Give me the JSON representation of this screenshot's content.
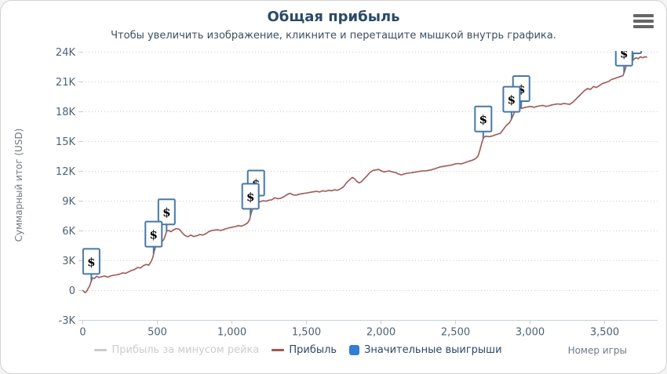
{
  "chart_data": {
    "type": "line",
    "title": "Общая прибыль",
    "subtitle": "Чтобы увеличить изображение, кликните и перетащите мышкой внутрь графика.",
    "xlabel": "Номер игры",
    "ylabel": "Суммарный итог (USD)",
    "xlim": [
      0,
      3860
    ],
    "ylim": [
      -3000,
      24000
    ],
    "grid": "horizontal-dotted",
    "legend_position": "bottom-center",
    "x_ticks": [
      {
        "value": 0,
        "label": "0"
      },
      {
        "value": 500,
        "label": "500"
      },
      {
        "value": 1000,
        "label": "1,000"
      },
      {
        "value": 1500,
        "label": "1,500"
      },
      {
        "value": 2000,
        "label": "2,000"
      },
      {
        "value": 2500,
        "label": "2,500"
      },
      {
        "value": 3000,
        "label": "3,000"
      },
      {
        "value": 3500,
        "label": "3,500"
      }
    ],
    "y_ticks": [
      {
        "value": -3000,
        "label": "-3K"
      },
      {
        "value": 0,
        "label": "0"
      },
      {
        "value": 3000,
        "label": "3K"
      },
      {
        "value": 6000,
        "label": "6K"
      },
      {
        "value": 9000,
        "label": "9K"
      },
      {
        "value": 12000,
        "label": "12K"
      },
      {
        "value": 15000,
        "label": "15K"
      },
      {
        "value": 18000,
        "label": "18K"
      },
      {
        "value": 21000,
        "label": "21K"
      },
      {
        "value": 24000,
        "label": "24K"
      }
    ],
    "series": [
      {
        "name": "Прибыль за минусом рейка",
        "type": "line",
        "visible": false,
        "color": "#cccccc",
        "points": []
      },
      {
        "name": "Прибыль",
        "type": "line",
        "visible": true,
        "color": "#b0524e",
        "points": [
          [
            0,
            0
          ],
          [
            8,
            -100
          ],
          [
            18,
            -250
          ],
          [
            28,
            -150
          ],
          [
            38,
            150
          ],
          [
            48,
            400
          ],
          [
            55,
            700
          ],
          [
            62,
            1000
          ],
          [
            68,
            1250
          ],
          [
            80,
            1150
          ],
          [
            95,
            1400
          ],
          [
            110,
            1280
          ],
          [
            130,
            1350
          ],
          [
            150,
            1420
          ],
          [
            170,
            1300
          ],
          [
            190,
            1430
          ],
          [
            210,
            1500
          ],
          [
            230,
            1540
          ],
          [
            250,
            1600
          ],
          [
            270,
            1740
          ],
          [
            290,
            1690
          ],
          [
            310,
            1840
          ],
          [
            330,
            1980
          ],
          [
            350,
            2080
          ],
          [
            370,
            2280
          ],
          [
            390,
            2230
          ],
          [
            410,
            2480
          ],
          [
            430,
            2580
          ],
          [
            445,
            2500
          ],
          [
            460,
            2850
          ],
          [
            472,
            3250
          ],
          [
            480,
            3800
          ],
          [
            490,
            4300
          ],
          [
            500,
            4480
          ],
          [
            512,
            4400
          ],
          [
            524,
            4680
          ],
          [
            536,
            4900
          ],
          [
            548,
            5150
          ],
          [
            558,
            5600
          ],
          [
            566,
            5950
          ],
          [
            580,
            6000
          ],
          [
            595,
            5880
          ],
          [
            610,
            6050
          ],
          [
            630,
            6200
          ],
          [
            650,
            6130
          ],
          [
            668,
            5800
          ],
          [
            688,
            5500
          ],
          [
            708,
            5380
          ],
          [
            728,
            5540
          ],
          [
            748,
            5400
          ],
          [
            768,
            5480
          ],
          [
            788,
            5600
          ],
          [
            808,
            5540
          ],
          [
            828,
            5680
          ],
          [
            848,
            5880
          ],
          [
            868,
            6000
          ],
          [
            888,
            6050
          ],
          [
            908,
            6080
          ],
          [
            928,
            6000
          ],
          [
            948,
            6100
          ],
          [
            968,
            6200
          ],
          [
            988,
            6280
          ],
          [
            1008,
            6340
          ],
          [
            1028,
            6400
          ],
          [
            1048,
            6500
          ],
          [
            1068,
            6440
          ],
          [
            1088,
            6580
          ],
          [
            1108,
            6750
          ],
          [
            1122,
            7100
          ],
          [
            1130,
            7600
          ],
          [
            1140,
            8100
          ],
          [
            1152,
            8500
          ],
          [
            1165,
            8800
          ],
          [
            1178,
            9000
          ],
          [
            1192,
            8900
          ],
          [
            1212,
            9000
          ],
          [
            1232,
            8950
          ],
          [
            1252,
            9050
          ],
          [
            1272,
            9100
          ],
          [
            1292,
            9300
          ],
          [
            1312,
            9200
          ],
          [
            1332,
            9250
          ],
          [
            1352,
            9400
          ],
          [
            1372,
            9600
          ],
          [
            1392,
            9750
          ],
          [
            1412,
            9600
          ],
          [
            1432,
            9550
          ],
          [
            1452,
            9650
          ],
          [
            1472,
            9700
          ],
          [
            1492,
            9750
          ],
          [
            1512,
            9800
          ],
          [
            1532,
            9850
          ],
          [
            1552,
            9900
          ],
          [
            1572,
            9950
          ],
          [
            1592,
            9880
          ],
          [
            1612,
            10000
          ],
          [
            1632,
            9950
          ],
          [
            1652,
            10050
          ],
          [
            1672,
            10000
          ],
          [
            1692,
            10100
          ],
          [
            1712,
            10050
          ],
          [
            1732,
            10200
          ],
          [
            1752,
            10400
          ],
          [
            1772,
            10800
          ],
          [
            1792,
            11100
          ],
          [
            1812,
            11350
          ],
          [
            1827,
            11200
          ],
          [
            1842,
            10950
          ],
          [
            1857,
            10800
          ],
          [
            1872,
            10900
          ],
          [
            1890,
            11200
          ],
          [
            1910,
            11500
          ],
          [
            1930,
            11850
          ],
          [
            1950,
            12050
          ],
          [
            1970,
            12100
          ],
          [
            1988,
            12150
          ],
          [
            2006,
            12000
          ],
          [
            2024,
            11900
          ],
          [
            2042,
            11950
          ],
          [
            2060,
            12000
          ],
          [
            2080,
            11900
          ],
          [
            2100,
            11850
          ],
          [
            2120,
            11700
          ],
          [
            2140,
            11600
          ],
          [
            2160,
            11700
          ],
          [
            2180,
            11760
          ],
          [
            2200,
            11800
          ],
          [
            2220,
            11850
          ],
          [
            2240,
            11900
          ],
          [
            2260,
            11950
          ],
          [
            2280,
            12000
          ],
          [
            2300,
            12000
          ],
          [
            2320,
            12050
          ],
          [
            2340,
            12100
          ],
          [
            2360,
            12200
          ],
          [
            2380,
            12300
          ],
          [
            2400,
            12400
          ],
          [
            2420,
            12450
          ],
          [
            2440,
            12500
          ],
          [
            2460,
            12550
          ],
          [
            2480,
            12600
          ],
          [
            2500,
            12700
          ],
          [
            2520,
            12750
          ],
          [
            2540,
            12700
          ],
          [
            2560,
            12800
          ],
          [
            2580,
            12900
          ],
          [
            2600,
            13000
          ],
          [
            2620,
            13100
          ],
          [
            2640,
            13250
          ],
          [
            2655,
            13500
          ],
          [
            2668,
            14100
          ],
          [
            2680,
            14800
          ],
          [
            2692,
            15350
          ],
          [
            2706,
            15500
          ],
          [
            2726,
            15450
          ],
          [
            2746,
            15500
          ],
          [
            2766,
            15600
          ],
          [
            2786,
            15700
          ],
          [
            2806,
            15800
          ],
          [
            2826,
            16200
          ],
          [
            2846,
            16600
          ],
          [
            2866,
            16850
          ],
          [
            2882,
            17300
          ],
          [
            2898,
            17850
          ],
          [
            2914,
            18150
          ],
          [
            2930,
            18350
          ],
          [
            2950,
            18300
          ],
          [
            2970,
            18400
          ],
          [
            2990,
            18450
          ],
          [
            3010,
            18500
          ],
          [
            3030,
            18400
          ],
          [
            3050,
            18500
          ],
          [
            3070,
            18550
          ],
          [
            3090,
            18600
          ],
          [
            3110,
            18500
          ],
          [
            3130,
            18550
          ],
          [
            3150,
            18650
          ],
          [
            3170,
            18700
          ],
          [
            3190,
            18750
          ],
          [
            3210,
            18700
          ],
          [
            3230,
            18800
          ],
          [
            3250,
            18750
          ],
          [
            3270,
            18700
          ],
          [
            3290,
            18900
          ],
          [
            3310,
            19200
          ],
          [
            3330,
            19500
          ],
          [
            3350,
            19800
          ],
          [
            3370,
            20100
          ],
          [
            3390,
            20300
          ],
          [
            3410,
            20200
          ],
          [
            3430,
            20500
          ],
          [
            3450,
            20400
          ],
          [
            3470,
            20600
          ],
          [
            3490,
            20800
          ],
          [
            3510,
            20900
          ],
          [
            3530,
            21000
          ],
          [
            3550,
            21200
          ],
          [
            3570,
            21300
          ],
          [
            3590,
            21400
          ],
          [
            3610,
            21500
          ],
          [
            3628,
            21600
          ],
          [
            3640,
            22100
          ],
          [
            3652,
            22700
          ],
          [
            3665,
            23000
          ],
          [
            3678,
            23200
          ],
          [
            3690,
            23050
          ],
          [
            3702,
            23250
          ],
          [
            3715,
            23400
          ],
          [
            3730,
            23300
          ],
          [
            3745,
            23500
          ],
          [
            3760,
            23400
          ],
          [
            3775,
            23500
          ],
          [
            3790,
            23450
          ]
        ]
      },
      {
        "name": "Значительные выигрыши",
        "type": "flags",
        "visible": true,
        "color": "#4179b5",
        "fill": "#ffffff",
        "legend_marker_color": "#2f7ed8",
        "symbol": "$",
        "flags": [
          {
            "x": 60,
            "title": "$"
          },
          {
            "x": 478,
            "title": "$"
          },
          {
            "x": 565,
            "title": "$"
          },
          {
            "x": 1128,
            "title": "$"
          },
          {
            "x": 1165,
            "title": "$"
          },
          {
            "x": 2690,
            "title": "$"
          },
          {
            "x": 2880,
            "title": "$"
          },
          {
            "x": 2945,
            "title": "$"
          },
          {
            "x": 3635,
            "title": "$"
          },
          {
            "x": 3695,
            "title": "$"
          }
        ]
      }
    ]
  },
  "colors": {
    "title": "#274b6d",
    "subtitle": "#37506a",
    "tick_label": "#4a637d",
    "axis_title": "#6d7b8a",
    "axis_line": "#c0d0e0",
    "gridline": "#cdcdcd",
    "legend_active": "#274b6d",
    "legend_disabled": "#cccccc",
    "export_icon": "#666666"
  }
}
